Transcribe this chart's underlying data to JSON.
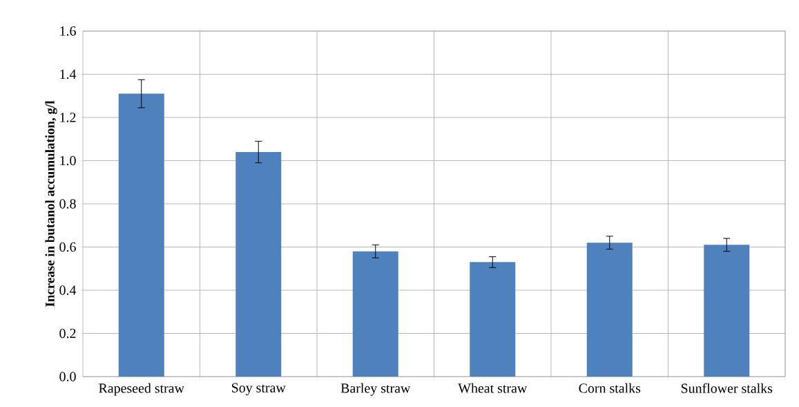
{
  "chart_data": {
    "type": "bar",
    "ylabel": "Increase in butanol accumulation, g/l",
    "categories": [
      "Rapeseed straw",
      "Soy straw",
      "Barley straw",
      "Wheat straw",
      "Corn stalks",
      "Sunflower stalks"
    ],
    "values": [
      1.31,
      1.04,
      0.58,
      0.53,
      0.62,
      0.61
    ],
    "errors": [
      0.065,
      0.05,
      0.03,
      0.025,
      0.03,
      0.03
    ],
    "color": "#4f81bd",
    "ylim": [
      0,
      1.6
    ],
    "yticks": [
      {
        "value": 0,
        "label": "0.0"
      },
      {
        "value": 0.2,
        "label": "0.2"
      },
      {
        "value": 0.4,
        "label": "0.4"
      },
      {
        "value": 0.6,
        "label": "0.6"
      },
      {
        "value": 0.8,
        "label": "0.8"
      },
      {
        "value": 1.0,
        "label": "1.0"
      },
      {
        "value": 1.2,
        "label": "1.2"
      },
      {
        "value": 1.4,
        "label": "1.4"
      },
      {
        "value": 1.6,
        "label": "1.6"
      }
    ],
    "grid": true
  }
}
